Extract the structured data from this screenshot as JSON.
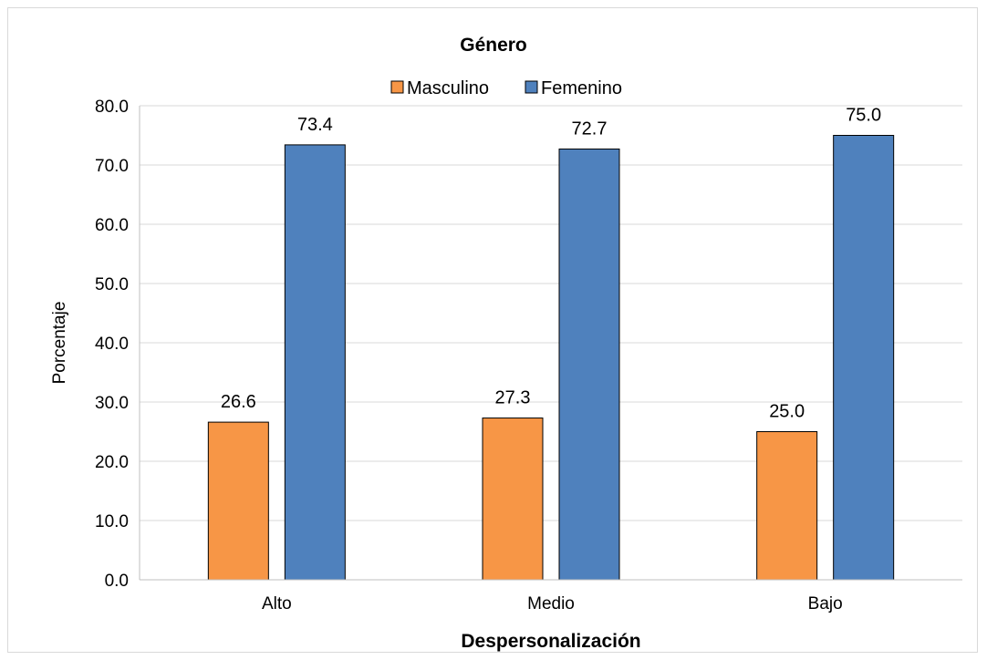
{
  "chart_data": {
    "type": "bar",
    "title": "Género",
    "xlabel": "Despersonalización",
    "ylabel": "Porcentaje",
    "categories": [
      "Alto",
      "Medio",
      "Bajo"
    ],
    "series": [
      {
        "name": "Masculino",
        "values": [
          26.6,
          27.3,
          25.0
        ],
        "color": "#f79646",
        "value_labels": [
          "26.6",
          "27.3",
          "25.0"
        ]
      },
      {
        "name": "Femenino",
        "values": [
          73.4,
          72.7,
          75.0
        ],
        "color": "#4f81bd",
        "value_labels": [
          "73.4",
          "72.7",
          "75.0"
        ]
      }
    ],
    "ylim": [
      0,
      80
    ],
    "yticks": [
      0,
      10,
      20,
      30,
      40,
      50,
      60,
      70,
      80
    ],
    "ytick_labels": [
      "0.0",
      "10.0",
      "20.0",
      "30.0",
      "40.0",
      "50.0",
      "60.0",
      "70.0",
      "80.0"
    ],
    "grid": true,
    "gridline_color": "#d9d9d9",
    "legend_position": "top-center"
  }
}
